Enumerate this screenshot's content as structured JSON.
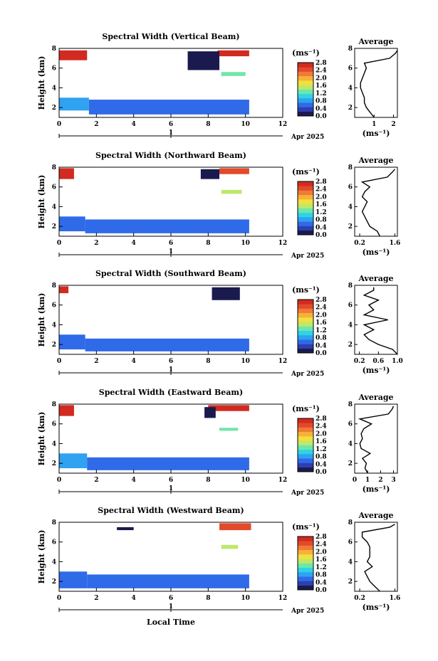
{
  "colorbar": {
    "unit": "(ms⁻¹)",
    "ticks": [
      "0.0",
      "0.4",
      "0.8",
      "1.2",
      "1.6",
      "2.0",
      "2.4",
      "2.8"
    ],
    "colors": [
      "#1a1a4e",
      "#2d3fb0",
      "#2f6ae8",
      "#2fa2f0",
      "#2fd3e8",
      "#6fe6a8",
      "#bfe86a",
      "#f2e03c",
      "#f6b13a",
      "#f07a36",
      "#e24a2a",
      "#d22a20"
    ]
  },
  "labels": {
    "ylabel": "Height (km)",
    "xlabel": "Local Time",
    "date_label": "Apr 2025",
    "day_marker": "1",
    "avg_title": "Average",
    "avg_unit": "(ms⁻¹)"
  },
  "chart_data": [
    {
      "type": "heatmap",
      "title": "Spectral Width (Vertical Beam)",
      "xlabel": "Local Time",
      "ylabel": "Height (km)",
      "xlim": [
        0,
        12
      ],
      "ylim": [
        1,
        8
      ],
      "xticks": [
        "0",
        "2",
        "4",
        "6",
        "8",
        "10",
        "12"
      ],
      "yticks": [
        "2",
        "4",
        "6",
        "8"
      ],
      "regions": [
        {
          "t": [
            0,
            1.6
          ],
          "h": [
            1.7,
            3.0
          ],
          "v": 0.8
        },
        {
          "t": [
            1.6,
            10.2
          ],
          "h": [
            1.3,
            2.8
          ],
          "v": 0.7
        },
        {
          "t": [
            0,
            1.5
          ],
          "h": [
            6.8,
            7.8
          ],
          "v": 2.8
        },
        {
          "t": [
            8.5,
            10.2
          ],
          "h": [
            7.2,
            7.8
          ],
          "v": 2.8
        },
        {
          "t": [
            6.9,
            8.6
          ],
          "h": [
            5.8,
            7.7
          ],
          "v": 0.2
        },
        {
          "t": [
            8.7,
            10.0
          ],
          "h": [
            5.2,
            5.6
          ],
          "v": 1.4
        }
      ],
      "average": {
        "title": "Average",
        "xlim": [
          0,
          2.2
        ],
        "xticks": [
          "1",
          "2"
        ],
        "yticks": [
          "2",
          "4",
          "6",
          "8"
        ],
        "height": [
          1.0,
          1.5,
          2.0,
          2.5,
          3.0,
          3.5,
          4.0,
          4.5,
          5.0,
          5.5,
          6.0,
          6.5,
          7.0,
          7.5,
          7.8
        ],
        "width": [
          1.0,
          0.8,
          0.6,
          0.5,
          0.5,
          0.4,
          0.3,
          0.3,
          0.4,
          0.5,
          0.6,
          0.5,
          1.8,
          2.1,
          2.2
        ]
      }
    },
    {
      "type": "heatmap",
      "title": "Spectral Width (Northward Beam)",
      "xlabel": "Local Time",
      "ylabel": "Height (km)",
      "xlim": [
        0,
        12
      ],
      "ylim": [
        1,
        8
      ],
      "xticks": [
        "0",
        "2",
        "4",
        "6",
        "8",
        "10",
        "12"
      ],
      "yticks": [
        "2",
        "4",
        "6",
        "8"
      ],
      "regions": [
        {
          "t": [
            0,
            1.4
          ],
          "h": [
            1.5,
            3.0
          ],
          "v": 0.7
        },
        {
          "t": [
            1.4,
            10.2
          ],
          "h": [
            1.3,
            2.7
          ],
          "v": 0.6
        },
        {
          "t": [
            0,
            0.8
          ],
          "h": [
            6.8,
            7.9
          ],
          "v": 2.8
        },
        {
          "t": [
            8.6,
            10.2
          ],
          "h": [
            7.3,
            7.9
          ],
          "v": 2.6
        },
        {
          "t": [
            7.6,
            8.6
          ],
          "h": [
            6.8,
            7.8
          ],
          "v": 0.2
        },
        {
          "t": [
            8.7,
            9.8
          ],
          "h": [
            5.3,
            5.7
          ],
          "v": 1.5
        }
      ],
      "average": {
        "title": "Average",
        "xlim": [
          0,
          1.7
        ],
        "xticks": [
          "0.2",
          "1.6"
        ],
        "yticks": [
          "2",
          "4",
          "6",
          "8"
        ],
        "height": [
          1.0,
          1.5,
          2.0,
          2.5,
          3.0,
          3.5,
          4.0,
          4.5,
          5.0,
          5.5,
          6.0,
          6.5,
          7.0,
          7.5,
          7.8
        ],
        "width": [
          1.0,
          0.9,
          0.6,
          0.5,
          0.4,
          0.3,
          0.4,
          0.5,
          0.3,
          0.4,
          0.6,
          0.3,
          1.3,
          1.5,
          1.6
        ]
      }
    },
    {
      "type": "heatmap",
      "title": "Spectral Width (Southward Beam)",
      "xlabel": "Local Time",
      "ylabel": "Height (km)",
      "xlim": [
        0,
        12
      ],
      "ylim": [
        1,
        8
      ],
      "xticks": [
        "0",
        "2",
        "4",
        "6",
        "8",
        "10",
        "12"
      ],
      "yticks": [
        "2",
        "4",
        "6",
        "8"
      ],
      "regions": [
        {
          "t": [
            0,
            1.4
          ],
          "h": [
            1.5,
            3.0
          ],
          "v": 0.7
        },
        {
          "t": [
            1.4,
            10.2
          ],
          "h": [
            1.3,
            2.6
          ],
          "v": 0.6
        },
        {
          "t": [
            0,
            0.5
          ],
          "h": [
            7.2,
            7.9
          ],
          "v": 2.8
        },
        {
          "t": [
            8.2,
            9.7
          ],
          "h": [
            6.5,
            7.8
          ],
          "v": 0.2
        }
      ],
      "average": {
        "title": "Average",
        "xlim": [
          0.1,
          1.0
        ],
        "xticks": [
          "0.2",
          "0.6",
          "1.0"
        ],
        "yticks": [
          "2",
          "4",
          "6",
          "8"
        ],
        "height": [
          1.0,
          1.5,
          2.0,
          2.5,
          3.0,
          3.5,
          4.0,
          4.5,
          5.0,
          5.5,
          6.0,
          6.5,
          7.0,
          7.5,
          7.8
        ],
        "width": [
          1.0,
          0.9,
          0.6,
          0.4,
          0.3,
          0.5,
          0.3,
          0.8,
          0.3,
          0.5,
          0.4,
          0.6,
          0.3,
          0.5,
          0.5
        ]
      }
    },
    {
      "type": "heatmap",
      "title": "Spectral Width (Eastward Beam)",
      "xlabel": "Local Time",
      "ylabel": "Height (km)",
      "xlim": [
        0,
        12
      ],
      "ylim": [
        1,
        8
      ],
      "xticks": [
        "0",
        "2",
        "4",
        "6",
        "8",
        "10",
        "12"
      ],
      "yticks": [
        "2",
        "4",
        "6",
        "8"
      ],
      "regions": [
        {
          "t": [
            0,
            1.5
          ],
          "h": [
            1.5,
            3.0
          ],
          "v": 0.8
        },
        {
          "t": [
            1.5,
            10.2
          ],
          "h": [
            1.3,
            2.6
          ],
          "v": 0.6
        },
        {
          "t": [
            0,
            0.8
          ],
          "h": [
            6.8,
            7.9
          ],
          "v": 2.8
        },
        {
          "t": [
            8.0,
            10.2
          ],
          "h": [
            7.3,
            7.9
          ],
          "v": 2.8
        },
        {
          "t": [
            7.8,
            8.4
          ],
          "h": [
            6.6,
            7.7
          ],
          "v": 0.2
        },
        {
          "t": [
            8.6,
            9.6
          ],
          "h": [
            5.3,
            5.6
          ],
          "v": 1.4
        }
      ],
      "average": {
        "title": "Average",
        "xlim": [
          0,
          3.3
        ],
        "xticks": [
          "0",
          "1",
          "2",
          "3"
        ],
        "yticks": [
          "2",
          "4",
          "6",
          "8"
        ],
        "height": [
          1.0,
          1.5,
          2.0,
          2.5,
          3.0,
          3.5,
          4.0,
          4.5,
          5.0,
          5.5,
          6.0,
          6.5,
          7.0,
          7.5,
          7.8
        ],
        "width": [
          1.0,
          0.8,
          0.9,
          0.6,
          1.2,
          0.5,
          0.4,
          0.6,
          0.5,
          0.7,
          1.3,
          0.4,
          2.6,
          2.9,
          3.0
        ]
      }
    },
    {
      "type": "heatmap",
      "title": "Spectral Width (Westward Beam)",
      "xlabel": "Local Time",
      "ylabel": "Height (km)",
      "xlim": [
        0,
        12
      ],
      "ylim": [
        1,
        8
      ],
      "xticks": [
        "0",
        "2",
        "4",
        "6",
        "8",
        "10",
        "12"
      ],
      "yticks": [
        "2",
        "4",
        "6",
        "8"
      ],
      "regions": [
        {
          "t": [
            0,
            1.5
          ],
          "h": [
            1.3,
            3.0
          ],
          "v": 0.7
        },
        {
          "t": [
            1.5,
            10.2
          ],
          "h": [
            1.3,
            2.7
          ],
          "v": 0.6
        },
        {
          "t": [
            8.6,
            10.3
          ],
          "h": [
            7.2,
            7.9
          ],
          "v": 2.6
        },
        {
          "t": [
            8.7,
            9.6
          ],
          "h": [
            5.3,
            5.7
          ],
          "v": 1.5
        },
        {
          "t": [
            3.1,
            4.0
          ],
          "h": [
            7.2,
            7.5
          ],
          "v": 0.2
        }
      ],
      "average": {
        "title": "Average",
        "xlim": [
          0,
          1.7
        ],
        "xticks": [
          "0.2",
          "1.6"
        ],
        "yticks": [
          "2",
          "4",
          "6",
          "8"
        ],
        "height": [
          1.0,
          1.5,
          2.0,
          2.5,
          3.0,
          3.5,
          4.0,
          4.5,
          5.0,
          5.5,
          6.0,
          6.5,
          7.0,
          7.5,
          7.8
        ],
        "width": [
          1.0,
          0.8,
          0.6,
          0.5,
          0.4,
          0.7,
          0.5,
          0.6,
          0.6,
          0.6,
          0.5,
          0.3,
          0.3,
          1.4,
          1.6
        ]
      }
    }
  ]
}
